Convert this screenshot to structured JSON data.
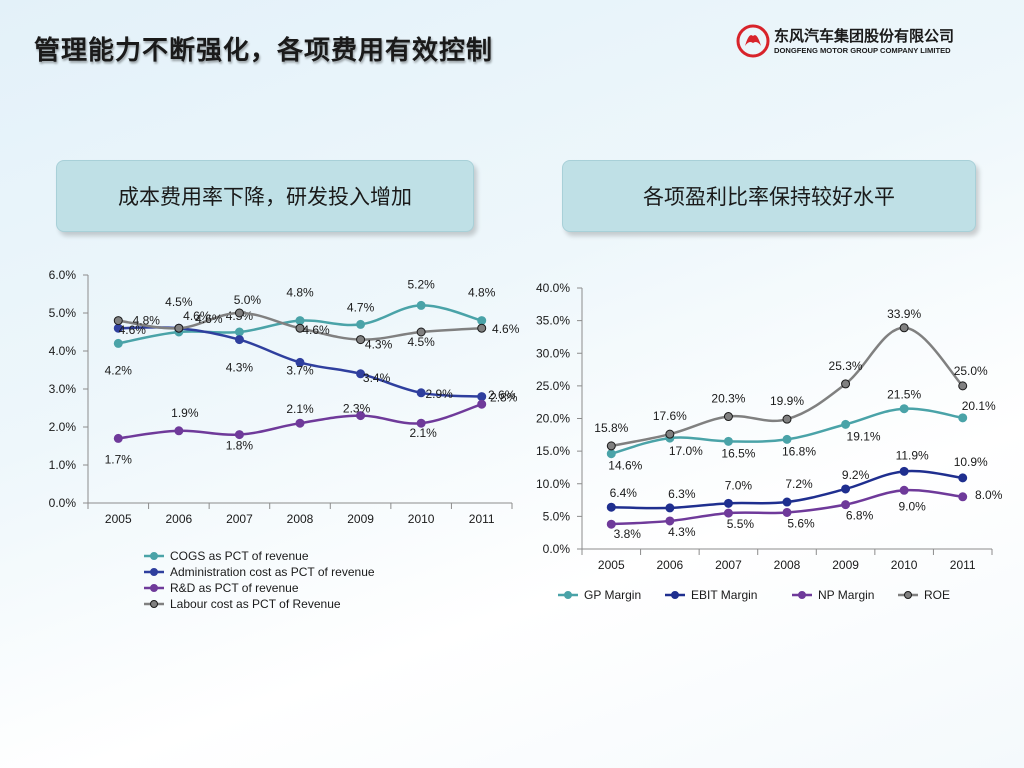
{
  "page": {
    "title": "管理能力不断强化，各项费用有效控制",
    "logo": {
      "cn": "东风汽车集团股份有限公司",
      "en": "DONGFENG MOTOR GROUP COMPANY LIMITED"
    },
    "panels": {
      "left": "成本费用率下降，研发投入增加",
      "right": "各项盈利比率保持较好水平"
    }
  },
  "chart_data": [
    {
      "type": "line",
      "categories": [
        "2005",
        "2006",
        "2007",
        "2008",
        "2009",
        "2010",
        "2011"
      ],
      "ylim": [
        0,
        6
      ],
      "yticks": [
        "0.0%",
        "1.0%",
        "2.0%",
        "3.0%",
        "4.0%",
        "5.0%",
        "6.0%"
      ],
      "legend_position": "bottom",
      "grid": false,
      "series": [
        {
          "name": "COGS as PCT of revenue",
          "color": "#4aa3a8",
          "values": [
            4.2,
            4.5,
            4.5,
            4.8,
            4.7,
            5.2,
            4.8
          ],
          "labels": [
            "4.2%",
            "4.5%",
            "4.5%",
            "4.8%",
            "4.7%",
            "5.2%",
            "4.8%"
          ]
        },
        {
          "name": "Administration cost as PCT of revenue",
          "color": "#2f3f9e",
          "values": [
            4.6,
            4.6,
            4.3,
            3.7,
            3.4,
            2.9,
            2.8
          ],
          "labels": [
            "4.6%",
            "4.6%",
            "4.3%",
            "3.7%",
            "3.4%",
            "2.9%",
            "2.8%"
          ]
        },
        {
          "name": "R&D as PCT of revenue",
          "color": "#6f3a9a",
          "values": [
            1.7,
            1.9,
            1.8,
            2.1,
            2.3,
            2.1,
            2.6
          ],
          "labels": [
            "1.7%",
            "1.9%",
            "1.8%",
            "2.1%",
            "2.3%",
            "2.1%",
            "2.6%"
          ]
        },
        {
          "name": "Labour cost as PCT of Revenue",
          "color": "#808080",
          "values": [
            4.8,
            4.6,
            5.0,
            4.6,
            4.3,
            4.5,
            4.6
          ],
          "labels": [
            "4.8%",
            "4.6%",
            "5.0%",
            "4.6%",
            "4.3%",
            "4.5%",
            "4.6%"
          ]
        }
      ]
    },
    {
      "type": "line",
      "categories": [
        "2005",
        "2006",
        "2007",
        "2008",
        "2009",
        "2010",
        "2011"
      ],
      "ylim": [
        0,
        40
      ],
      "yticks": [
        "0.0%",
        "5.0%",
        "10.0%",
        "15.0%",
        "20.0%",
        "25.0%",
        "30.0%",
        "35.0%",
        "40.0%"
      ],
      "legend_position": "bottom",
      "grid": false,
      "series": [
        {
          "name": "GP Margin",
          "color": "#4aa3a8",
          "values": [
            14.6,
            17.0,
            16.5,
            16.8,
            19.1,
            21.5,
            20.1
          ],
          "labels": [
            "14.6%",
            "17.0%",
            "16.5%",
            "16.8%",
            "19.1%",
            "21.5%",
            "20.1%"
          ]
        },
        {
          "name": "EBIT Margin",
          "color": "#1f2f8f",
          "values": [
            6.4,
            6.3,
            7.0,
            7.2,
            9.2,
            11.9,
            10.9
          ],
          "labels": [
            "6.4%",
            "6.3%",
            "7.0%",
            "7.2%",
            "9.2%",
            "11.9%",
            "10.9%"
          ]
        },
        {
          "name": "NP Margin",
          "color": "#6f3a9a",
          "values": [
            3.8,
            4.3,
            5.5,
            5.6,
            6.8,
            9.0,
            8.0
          ],
          "labels": [
            "3.8%",
            "4.3%",
            "5.5%",
            "5.6%",
            "6.8%",
            "9.0%",
            "8.0%"
          ]
        },
        {
          "name": "ROE",
          "color": "#808080",
          "values": [
            15.8,
            17.6,
            20.3,
            19.9,
            25.3,
            33.9,
            25.0
          ],
          "labels": [
            "15.8%",
            "17.6%",
            "20.3%",
            "19.9%",
            "25.3%",
            "33.9%",
            "25.0%"
          ]
        }
      ]
    }
  ]
}
